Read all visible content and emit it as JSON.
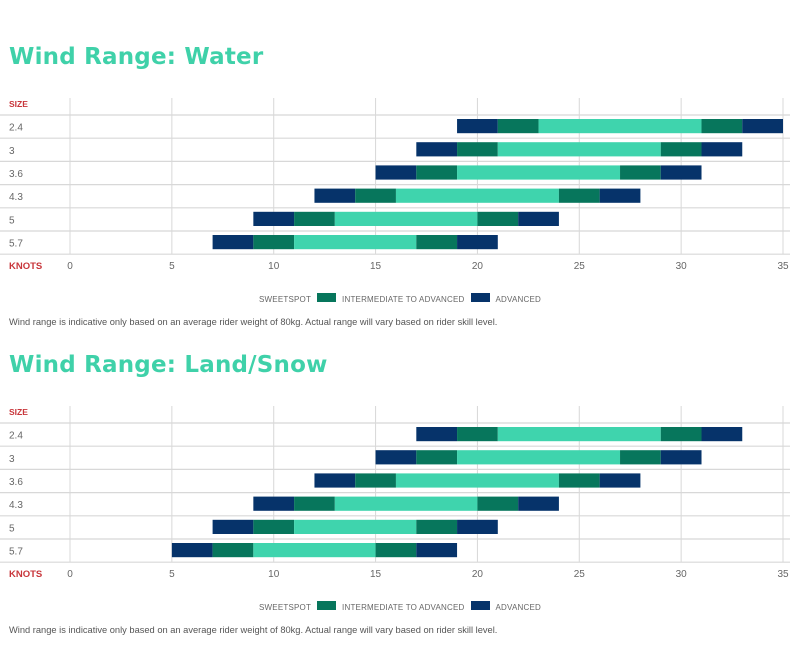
{
  "colors": {
    "title": "#3fd1a9",
    "axis_label": "#c8353a",
    "sweetspot": "#3fd4ad",
    "intermediate_to_advanced": "#07765c",
    "advanced": "#06336a",
    "grid": "#d8d8d8"
  },
  "chart_data": [
    {
      "type": "bar",
      "subtype": "stacked-range",
      "title": "Wind Range: Water",
      "ylabel": "SIZE",
      "xlabel": "KNOTS",
      "xlim": [
        0,
        35
      ],
      "xticks": [
        "0",
        "5",
        "10",
        "15",
        "20",
        "25",
        "30",
        "35"
      ],
      "grid": true,
      "categories": [
        "2.4",
        "3",
        "3.6",
        "4.3",
        "5",
        "5.7"
      ],
      "segments": [
        "advanced",
        "intermediate_to_advanced",
        "sweetspot",
        "intermediate_to_advanced",
        "advanced"
      ],
      "breakpoints": [
        [
          19,
          21,
          23,
          31,
          33,
          35
        ],
        [
          17,
          19,
          21,
          29,
          31,
          33
        ],
        [
          15,
          17,
          19,
          27,
          29,
          31
        ],
        [
          12,
          14,
          16,
          24,
          26,
          28
        ],
        [
          9,
          11,
          13,
          20,
          22,
          24
        ],
        [
          7,
          9,
          11,
          17,
          19,
          21
        ]
      ],
      "legend": [
        "SWEETSPOT",
        "INTERMEDIATE TO ADVANCED",
        "ADVANCED"
      ],
      "legend_position": "bottom-center",
      "note": "Wind range is indicative only based on an average rider weight of 80kg. Actual range will vary based on rider skill level."
    },
    {
      "type": "bar",
      "subtype": "stacked-range",
      "title": "Wind Range: Land/Snow",
      "ylabel": "SIZE",
      "xlabel": "KNOTS",
      "xlim": [
        0,
        35
      ],
      "xticks": [
        "0",
        "5",
        "10",
        "15",
        "20",
        "25",
        "30",
        "35"
      ],
      "grid": true,
      "categories": [
        "2.4",
        "3",
        "3.6",
        "4.3",
        "5",
        "5.7"
      ],
      "segments": [
        "advanced",
        "intermediate_to_advanced",
        "sweetspot",
        "intermediate_to_advanced",
        "advanced"
      ],
      "breakpoints": [
        [
          17,
          19,
          21,
          29,
          31,
          33
        ],
        [
          15,
          17,
          19,
          27,
          29,
          31
        ],
        [
          12,
          14,
          16,
          24,
          26,
          28
        ],
        [
          9,
          11,
          13,
          20,
          22,
          24
        ],
        [
          7,
          9,
          11,
          17,
          19,
          21
        ],
        [
          5,
          7,
          9,
          15,
          17,
          19
        ]
      ],
      "legend": [
        "SWEETSPOT",
        "INTERMEDIATE TO ADVANCED",
        "ADVANCED"
      ],
      "legend_position": "bottom-center",
      "note": "Wind range is indicative only based on an average rider weight of 80kg. Actual range will vary based on rider skill level."
    }
  ]
}
